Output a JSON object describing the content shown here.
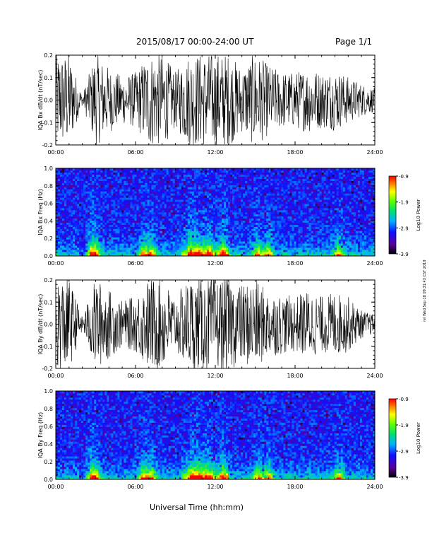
{
  "header": {
    "title": "2015/08/17  00:00-24:00 UT",
    "page": "Page 1/1",
    "side_note": "rel Wed Sep 18 09:31:43 CST 2019"
  },
  "chart_data": [
    {
      "type": "line",
      "id": "bx-time",
      "ylabel": "IQA Bx dB/dt (nT/sec)",
      "ylim": [
        -0.2,
        0.2
      ],
      "yticks": [
        "0.2",
        "0.1",
        "0.0",
        "-0.1",
        "-0.2"
      ],
      "xticks": [
        "00:00",
        "06:00",
        "12:00",
        "18:00",
        "24:00"
      ],
      "x_hours": [
        0,
        1,
        2,
        3,
        4,
        5,
        6,
        7,
        8,
        9,
        10,
        11,
        12,
        13,
        14,
        15,
        16,
        17,
        18,
        19,
        20,
        21,
        22,
        23,
        24
      ],
      "amplitude": [
        0.2,
        0.2,
        0.02,
        0.2,
        0.14,
        0.1,
        0.12,
        0.2,
        0.2,
        0.12,
        0.2,
        0.2,
        0.2,
        0.2,
        0.14,
        0.2,
        0.15,
        0.12,
        0.12,
        0.14,
        0.12,
        0.13,
        0.1,
        0.07,
        0.05
      ]
    },
    {
      "type": "heatmap",
      "id": "bx-spec",
      "ylabel": "IQA Bx Freq (Hz)",
      "ylim": [
        0.0,
        1.0
      ],
      "yticks": [
        "1.0",
        "0.8",
        "0.6",
        "0.4",
        "0.2",
        "0.0"
      ],
      "xticks": [
        "00:00",
        "06:00",
        "12:00",
        "18:00",
        "24:00"
      ],
      "colorbar": {
        "label": "Log10 Power",
        "ticks": [
          "-0.9",
          "-1.9",
          "-2.9",
          "-3.9"
        ]
      }
    },
    {
      "type": "line",
      "id": "by-time",
      "ylabel": "IQA By dB/dt (nT/sec)",
      "ylim": [
        -0.2,
        0.2
      ],
      "yticks": [
        "0.2",
        "0.1",
        "0.0",
        "-0.1",
        "-0.2"
      ],
      "xticks": [
        "00:00",
        "06:00",
        "12:00",
        "18:00",
        "24:00"
      ],
      "x_hours": [
        0,
        1,
        2,
        3,
        4,
        5,
        6,
        7,
        8,
        9,
        10,
        11,
        12,
        13,
        14,
        15,
        16,
        17,
        18,
        19,
        20,
        21,
        22,
        23,
        24
      ],
      "amplitude": [
        0.2,
        0.2,
        0.03,
        0.2,
        0.15,
        0.1,
        0.12,
        0.2,
        0.2,
        0.12,
        0.2,
        0.2,
        0.2,
        0.2,
        0.17,
        0.2,
        0.14,
        0.13,
        0.12,
        0.15,
        0.12,
        0.14,
        0.12,
        0.06,
        0.04
      ]
    },
    {
      "type": "heatmap",
      "id": "by-spec",
      "ylabel": "IQA By Freq (Hz)",
      "ylim": [
        0.0,
        1.0
      ],
      "yticks": [
        "1.0",
        "0.8",
        "0.6",
        "0.4",
        "0.2",
        "0.0"
      ],
      "xticks": [
        "00:00",
        "06:00",
        "12:00",
        "18:00",
        "24:00"
      ],
      "colorbar": {
        "label": "Log10 Power",
        "ticks": [
          "-0.9",
          "-1.9",
          "-2.9",
          "-3.9"
        ]
      }
    }
  ],
  "xlabel": "Universal Time (hh:mm)"
}
